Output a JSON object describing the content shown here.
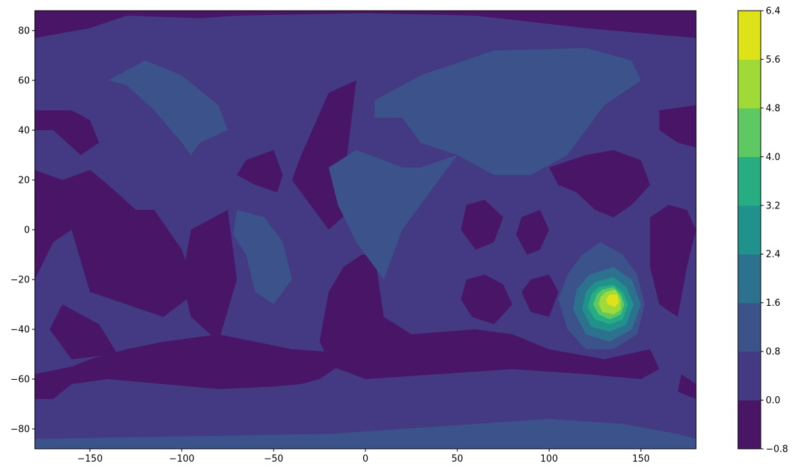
{
  "chart_data": {
    "type": "heatmap",
    "subtype": "filled-contour",
    "title": "",
    "xlabel": "",
    "ylabel": "",
    "xlim": [
      -180,
      180
    ],
    "ylim": [
      -88,
      88
    ],
    "xticks": [
      -150,
      -100,
      -50,
      0,
      50,
      100,
      150
    ],
    "xtick_labels": [
      "−150",
      "−100",
      "−50",
      "0",
      "50",
      "100",
      "150"
    ],
    "yticks": [
      80,
      60,
      40,
      20,
      0,
      -20,
      -40,
      -60,
      -80
    ],
    "ytick_labels": [
      "80",
      "60",
      "40",
      "20",
      "0",
      "−20",
      "−40",
      "−60",
      "−80"
    ],
    "grid": false,
    "colorbar": {
      "levels": [
        -0.8,
        0.0,
        0.8,
        1.6,
        2.4,
        3.2,
        4.0,
        4.8,
        5.6,
        6.4
      ],
      "tick_labels": [
        "−0.8",
        "0.0",
        "0.8",
        "1.6",
        "2.4",
        "3.2",
        "4.0",
        "4.8",
        "5.6",
        "6.4"
      ],
      "colors": [
        "#481567",
        "#443983",
        "#3b528b",
        "#2c728e",
        "#21918c",
        "#27ad81",
        "#5ec962",
        "#a0da39",
        "#dde318"
      ]
    },
    "regions": [
      {
        "level": 1,
        "points": [
          [
            -180,
            -88
          ],
          [
            180,
            -88
          ],
          [
            180,
            88
          ],
          [
            -180,
            88
          ]
        ]
      },
      {
        "level": 0,
        "points": [
          [
            -180,
            88
          ],
          [
            180,
            88
          ],
          [
            180,
            77
          ],
          [
            120,
            81
          ],
          [
            60,
            86
          ],
          [
            0,
            87
          ],
          [
            -70,
            86
          ],
          [
            -90,
            85
          ],
          [
            -130,
            86
          ],
          [
            -150,
            81
          ],
          [
            -180,
            77
          ]
        ]
      },
      {
        "level": 2,
        "points": [
          [
            -180,
            -84
          ],
          [
            -100,
            -83
          ],
          [
            -20,
            -82
          ],
          [
            40,
            -79
          ],
          [
            100,
            -76
          ],
          [
            140,
            -78
          ],
          [
            170,
            -82
          ],
          [
            180,
            -84
          ],
          [
            180,
            -88
          ],
          [
            -180,
            -88
          ]
        ]
      },
      {
        "level": 0,
        "points": [
          [
            -180,
            -58
          ],
          [
            -160,
            -55
          ],
          [
            -150,
            -52
          ],
          [
            -130,
            -48
          ],
          [
            -110,
            -45
          ],
          [
            -80,
            -42
          ],
          [
            -60,
            -45
          ],
          [
            -40,
            -48
          ],
          [
            -20,
            -49
          ],
          [
            -15,
            -55
          ],
          [
            -25,
            -60
          ],
          [
            -35,
            -62
          ],
          [
            -50,
            -63
          ],
          [
            -80,
            -64
          ],
          [
            -110,
            -62
          ],
          [
            -140,
            -60
          ],
          [
            -160,
            -62
          ],
          [
            -170,
            -68
          ],
          [
            -180,
            -68
          ]
        ]
      },
      {
        "level": 0,
        "points": [
          [
            -12,
            -15
          ],
          [
            -2,
            -10
          ],
          [
            5,
            -10
          ],
          [
            10,
            -35
          ],
          [
            25,
            -42
          ],
          [
            60,
            -40
          ],
          [
            80,
            -42
          ],
          [
            100,
            -48
          ],
          [
            130,
            -52
          ],
          [
            155,
            -48
          ],
          [
            160,
            -56
          ],
          [
            150,
            -60
          ],
          [
            120,
            -58
          ],
          [
            80,
            -56
          ],
          [
            40,
            -58
          ],
          [
            0,
            -60
          ],
          [
            -18,
            -55
          ],
          [
            -25,
            -45
          ],
          [
            -20,
            -25
          ]
        ]
      },
      {
        "level": 0,
        "points": [
          [
            -180,
            48
          ],
          [
            -160,
            48
          ],
          [
            -150,
            44
          ],
          [
            -145,
            35
          ],
          [
            -155,
            30
          ],
          [
            -170,
            40
          ],
          [
            -180,
            40
          ]
        ]
      },
      {
        "level": 0,
        "points": [
          [
            -180,
            24
          ],
          [
            -165,
            20
          ],
          [
            -150,
            24
          ],
          [
            -140,
            18
          ],
          [
            -125,
            8
          ],
          [
            -115,
            8
          ],
          [
            -100,
            -8
          ],
          [
            -92,
            -25
          ],
          [
            -110,
            -35
          ],
          [
            -150,
            -25
          ],
          [
            -160,
            0
          ],
          [
            -170,
            -5
          ],
          [
            -180,
            -20
          ]
        ]
      },
      {
        "level": 0,
        "points": [
          [
            -165,
            -30
          ],
          [
            -145,
            -38
          ],
          [
            -135,
            -50
          ],
          [
            -160,
            -52
          ],
          [
            -172,
            -40
          ]
        ]
      },
      {
        "level": 0,
        "points": [
          [
            -65,
            28
          ],
          [
            -50,
            32
          ],
          [
            -45,
            22
          ],
          [
            -48,
            15
          ],
          [
            -60,
            18
          ],
          [
            -70,
            22
          ]
        ]
      },
      {
        "level": 0,
        "points": [
          [
            -95,
            0
          ],
          [
            -75,
            8
          ],
          [
            -70,
            -20
          ],
          [
            -80,
            -45
          ],
          [
            -95,
            -35
          ],
          [
            -100,
            -20
          ]
        ]
      },
      {
        "level": 0,
        "points": [
          [
            -35,
            30
          ],
          [
            -20,
            55
          ],
          [
            -5,
            60
          ],
          [
            -10,
            30
          ],
          [
            -5,
            10
          ],
          [
            -20,
            0
          ],
          [
            -30,
            10
          ],
          [
            -40,
            20
          ]
        ]
      },
      {
        "level": 2,
        "points": [
          [
            -140,
            60
          ],
          [
            -120,
            68
          ],
          [
            -100,
            62
          ],
          [
            -80,
            50
          ],
          [
            -75,
            40
          ],
          [
            -90,
            35
          ],
          [
            -95,
            30
          ],
          [
            -100,
            35
          ],
          [
            -115,
            48
          ],
          [
            -130,
            58
          ]
        ]
      },
      {
        "level": 2,
        "points": [
          [
            -70,
            8
          ],
          [
            -55,
            5
          ],
          [
            -45,
            -5
          ],
          [
            -40,
            -20
          ],
          [
            -50,
            -30
          ],
          [
            -60,
            -25
          ],
          [
            -65,
            -10
          ],
          [
            -72,
            -2
          ]
        ]
      },
      {
        "level": 2,
        "points": [
          [
            5,
            52
          ],
          [
            30,
            62
          ],
          [
            70,
            72
          ],
          [
            120,
            73
          ],
          [
            145,
            68
          ],
          [
            150,
            60
          ],
          [
            130,
            50
          ],
          [
            110,
            30
          ],
          [
            90,
            22
          ],
          [
            70,
            22
          ],
          [
            50,
            30
          ],
          [
            30,
            35
          ],
          [
            20,
            45
          ],
          [
            5,
            45
          ]
        ]
      },
      {
        "level": 2,
        "points": [
          [
            -20,
            25
          ],
          [
            -5,
            32
          ],
          [
            10,
            28
          ],
          [
            20,
            25
          ],
          [
            30,
            25
          ],
          [
            50,
            30
          ],
          [
            40,
            20
          ],
          [
            30,
            10
          ],
          [
            20,
            0
          ],
          [
            15,
            -10
          ],
          [
            10,
            -20
          ],
          [
            0,
            -10
          ],
          [
            -5,
            -5
          ],
          [
            -15,
            10
          ]
        ]
      },
      {
        "level": 0,
        "points": [
          [
            55,
            10
          ],
          [
            65,
            12
          ],
          [
            75,
            5
          ],
          [
            70,
            -5
          ],
          [
            60,
            -8
          ],
          [
            52,
            0
          ]
        ]
      },
      {
        "level": 0,
        "points": [
          [
            85,
            5
          ],
          [
            95,
            8
          ],
          [
            100,
            0
          ],
          [
            95,
            -8
          ],
          [
            88,
            -10
          ],
          [
            82,
            -2
          ]
        ]
      },
      {
        "level": 0,
        "points": [
          [
            55,
            -20
          ],
          [
            65,
            -18
          ],
          [
            75,
            -22
          ],
          [
            80,
            -30
          ],
          [
            70,
            -38
          ],
          [
            58,
            -35
          ],
          [
            52,
            -28
          ]
        ]
      },
      {
        "level": 0,
        "points": [
          [
            90,
            -20
          ],
          [
            100,
            -18
          ],
          [
            105,
            -25
          ],
          [
            100,
            -35
          ],
          [
            90,
            -33
          ],
          [
            85,
            -25
          ]
        ]
      },
      {
        "level": 0,
        "points": [
          [
            100,
            25
          ],
          [
            120,
            30
          ],
          [
            135,
            32
          ],
          [
            150,
            28
          ],
          [
            155,
            18
          ],
          [
            145,
            10
          ],
          [
            135,
            5
          ],
          [
            125,
            8
          ],
          [
            115,
            15
          ],
          [
            105,
            18
          ]
        ]
      },
      {
        "level": 0,
        "points": [
          [
            160,
            48
          ],
          [
            180,
            50
          ],
          [
            180,
            33
          ],
          [
            170,
            35
          ],
          [
            160,
            40
          ]
        ]
      },
      {
        "level": 0,
        "points": [
          [
            155,
            5
          ],
          [
            165,
            10
          ],
          [
            175,
            8
          ],
          [
            180,
            0
          ],
          [
            175,
            -15
          ],
          [
            170,
            -35
          ],
          [
            160,
            -30
          ],
          [
            155,
            -15
          ]
        ]
      },
      {
        "level": 0,
        "points": [
          [
            172,
            -58
          ],
          [
            180,
            -62
          ],
          [
            180,
            -68
          ],
          [
            170,
            -65
          ]
        ]
      },
      {
        "level": 2,
        "points": [
          [
            118,
            -10
          ],
          [
            128,
            -5
          ],
          [
            140,
            -10
          ],
          [
            148,
            -18
          ],
          [
            152,
            -30
          ],
          [
            148,
            -42
          ],
          [
            135,
            -48
          ],
          [
            120,
            -48
          ],
          [
            110,
            -40
          ],
          [
            105,
            -28
          ],
          [
            110,
            -18
          ]
        ]
      },
      {
        "level": 3,
        "points": [
          [
            122,
            -18
          ],
          [
            135,
            -15
          ],
          [
            145,
            -20
          ],
          [
            150,
            -30
          ],
          [
            145,
            -40
          ],
          [
            133,
            -45
          ],
          [
            120,
            -42
          ],
          [
            113,
            -32
          ],
          [
            115,
            -24
          ]
        ]
      },
      {
        "level": 4,
        "points": [
          [
            125,
            -21
          ],
          [
            135,
            -19
          ],
          [
            142,
            -23
          ],
          [
            146,
            -30
          ],
          [
            142,
            -38
          ],
          [
            133,
            -41
          ],
          [
            123,
            -39
          ],
          [
            118,
            -32
          ],
          [
            120,
            -25
          ]
        ]
      },
      {
        "level": 5,
        "points": [
          [
            127,
            -23
          ],
          [
            135,
            -22
          ],
          [
            140,
            -25
          ],
          [
            143,
            -30
          ],
          [
            140,
            -36
          ],
          [
            133,
            -38
          ],
          [
            125,
            -36
          ],
          [
            121,
            -31
          ],
          [
            123,
            -26
          ]
        ]
      },
      {
        "level": 6,
        "points": [
          [
            129,
            -24
          ],
          [
            135,
            -23
          ],
          [
            139,
            -26
          ],
          [
            141,
            -30
          ],
          [
            139,
            -34
          ],
          [
            133,
            -36
          ],
          [
            127,
            -34
          ],
          [
            124,
            -30
          ],
          [
            126,
            -26
          ]
        ]
      },
      {
        "level": 7,
        "points": [
          [
            131,
            -25
          ],
          [
            136,
            -24
          ],
          [
            139,
            -28
          ],
          [
            139,
            -32
          ],
          [
            135,
            -34
          ],
          [
            129,
            -33
          ],
          [
            127,
            -30
          ],
          [
            128,
            -27
          ]
        ]
      },
      {
        "level": 8,
        "points": [
          [
            133,
            -26
          ],
          [
            137,
            -26
          ],
          [
            138,
            -29
          ],
          [
            136,
            -31
          ],
          [
            132,
            -30
          ],
          [
            131,
            -28
          ]
        ]
      }
    ]
  }
}
